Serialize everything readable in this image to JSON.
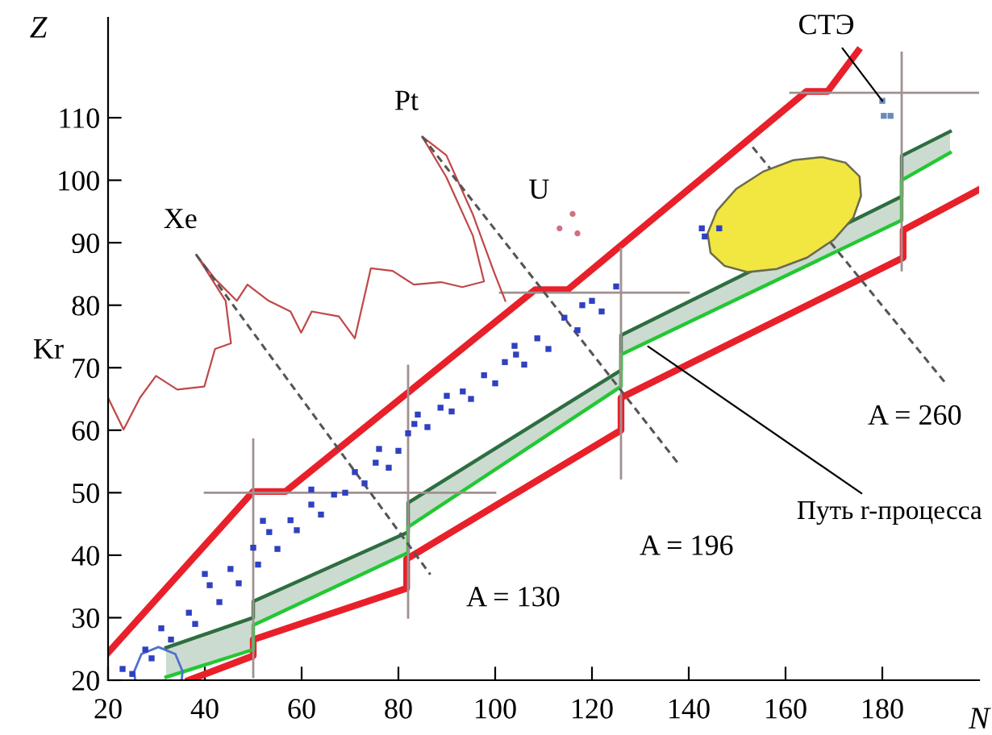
{
  "chart_data": {
    "type": "line",
    "xlabel": "N",
    "ylabel": "Z",
    "xlim": [
      20,
      200
    ],
    "ylim": [
      20,
      126
    ],
    "xticks": [
      20,
      40,
      60,
      80,
      100,
      120,
      140,
      160,
      180
    ],
    "yticks": [
      20,
      30,
      40,
      50,
      60,
      70,
      80,
      90,
      100,
      110
    ],
    "grid": false,
    "legend": false,
    "series": [
      {
        "color": "#e8202a",
        "x": [
          20,
          50,
          56.7,
          108.3,
          115,
          164.3,
          168.7,
          175
        ],
        "values": [
          24.4,
          50.2,
          50.2,
          82.5,
          82.5,
          114.2,
          114.2,
          120.7
        ]
      },
      {
        "color": "#e8202a",
        "x": [
          36.7,
          50,
          50,
          81.7,
          81.7,
          126,
          126,
          184.3,
          184.3,
          200
        ],
        "values": [
          20,
          23.9,
          26.5,
          34.7,
          39.4,
          60,
          65.2,
          87.6,
          92,
          98.5
        ]
      },
      {
        "type": "line",
        "color": "#2e6e40",
        "x": [
          32,
          50,
          50,
          82,
          82,
          126,
          126,
          184,
          184,
          194
        ],
        "values": [
          25.2,
          30,
          32.6,
          43.7,
          48.4,
          69.6,
          75.2,
          97.4,
          103.9,
          107.8
        ],
        "lower": [
          20.5,
          24.9,
          28.8,
          40.4,
          44.5,
          67,
          72.1,
          93.6,
          100,
          104.4
        ],
        "upper": [
          25.2,
          30,
          32.6,
          43.7,
          48.4,
          69.6,
          75.2,
          97.4,
          103.9,
          107.8
        ]
      },
      {
        "type": "line",
        "color": "#22c833",
        "x": [
          32,
          50,
          50,
          82,
          82,
          126,
          126,
          184,
          184,
          194
        ],
        "values": [
          20.5,
          24.9,
          28.8,
          40.4,
          44.5,
          67,
          72.1,
          93.6,
          100,
          104.4
        ]
      },
      {
        "type": "line",
        "color": "#a09090",
        "x": [
          40,
          100,
          null,
          50,
          50,
          null,
          82,
          82,
          null,
          101,
          140,
          null,
          126,
          126,
          null,
          161,
          200,
          null,
          184,
          184
        ],
        "values": [
          50,
          50,
          null,
          58.5,
          20.5,
          null,
          70.3,
          30,
          null,
          82,
          82,
          null,
          89,
          52.3,
          null,
          114,
          114,
          null,
          120.4,
          85.6
        ]
      },
      {
        "type": "line",
        "color": "#c04848",
        "x": [
          20,
          23.2,
          26.6,
          29.9,
          34.3,
          39.9,
          42.1,
          45.4,
          44.3,
          38.2,
          42.1,
          46.6,
          48.8,
          53.2,
          57.7,
          59.9,
          62.1,
          67.7,
          71,
          74.3,
          78.8,
          83.2,
          88.8,
          93.2,
          97.7,
          95.4,
          89.9,
          84.9,
          89.9,
          95.4,
          99.9,
          102.1
        ],
        "values": [
          65.2,
          60.1,
          65.2,
          68.7,
          66.5,
          67,
          73,
          73.9,
          80.7,
          88.1,
          84.2,
          80.7,
          83.3,
          80.7,
          79,
          75.6,
          79,
          78.2,
          74.7,
          85.9,
          85.5,
          83.3,
          83.7,
          82.9,
          83.8,
          91.1,
          100.5,
          107,
          104,
          94.5,
          85,
          80.7
        ]
      },
      {
        "type": "line",
        "color": "#555555",
        "line_style": "dashed",
        "x": [
          38.2,
          86.6
        ],
        "values": [
          88.1,
          36.9
        ]
      },
      {
        "type": "line",
        "color": "#555555",
        "line_style": "dashed",
        "x": [
          84.9,
          137.7
        ],
        "values": [
          107,
          54.8
        ]
      },
      {
        "type": "line",
        "color": "#555555",
        "line_style": "dashed",
        "x": [
          153.2,
          193.2
        ],
        "values": [
          105.3,
          67.4
        ]
      },
      {
        "type": "area",
        "color": "#f2e640",
        "x": [
          175.3,
          175.6,
          174.0,
          170,
          164.4,
          158.2,
          152.2,
          147.4,
          144.5,
          143.9,
          145.8,
          149.8,
          155.4,
          161.6,
          167.6,
          172.4
        ],
        "values": [
          100.6,
          97.5,
          94.0,
          90.5,
          87.6,
          85.8,
          85.3,
          86.3,
          88.4,
          91.5,
          95.1,
          98.6,
          101.4,
          103.2,
          103.7,
          102.8
        ]
      },
      {
        "type": "line",
        "color": "#5070d0",
        "x": [
          35.2,
          35.4,
          33.9,
          30.4,
          26.9,
          25.4,
          25.6
        ],
        "values": [
          20,
          21.4,
          24.2,
          25.3,
          24.2,
          21.4,
          20
        ]
      },
      {
        "type": "scatter",
        "color": "#3040c0",
        "marker": "square",
        "x": [
          23,
          27.7,
          31,
          36.7,
          41,
          45.3,
          50,
          53.3,
          57.7,
          62,
          66.7,
          71,
          75.3,
          80,
          83.3,
          88.7,
          93.3,
          97.7,
          102,
          104.3,
          108.7,
          114.3,
          120,
          125,
          25,
          29,
          33,
          38,
          43,
          47,
          51,
          55,
          59,
          64,
          69,
          73,
          78,
          82,
          86,
          91,
          95,
          100,
          106,
          111,
          117,
          122,
          40,
          52,
          62,
          76,
          84,
          90,
          104,
          118,
          142.7,
          143.3,
          146.3
        ],
        "values": [
          21.8,
          24.9,
          28.3,
          30.8,
          35.2,
          37.8,
          41.2,
          43.7,
          45.6,
          48.1,
          49.7,
          53.3,
          54.8,
          56.7,
          61,
          63.6,
          66.2,
          68.8,
          70.9,
          72.1,
          74.7,
          78,
          80.7,
          83,
          21,
          23.5,
          26.5,
          29,
          32.5,
          35.5,
          38.5,
          41,
          44,
          46.5,
          50,
          51.5,
          54,
          59.5,
          60.5,
          63,
          65,
          67.5,
          70.5,
          73,
          76,
          79,
          37,
          45.5,
          50.5,
          57,
          62.5,
          65.5,
          73.5,
          80,
          92.3,
          91,
          92.3
        ]
      },
      {
        "type": "scatter",
        "color": "#6a8ab8",
        "marker": "square",
        "x": [
          180,
          181.7,
          180.3
        ],
        "values": [
          112.7,
          110.3,
          110.3
        ]
      },
      {
        "type": "scatter",
        "color": "#d07080",
        "marker": "circle",
        "x": [
          113.3,
          116,
          117
        ],
        "values": [
          92.3,
          94.6,
          91.5
        ]
      }
    ],
    "annotations": [
      "Kr",
      {
        "text": "Xe",
        "x": 38.2,
        "y": 88.1
      },
      {
        "text": "Pt",
        "x": 84.9,
        "y": 107
      },
      {
        "text": "U",
        "x": 116,
        "y": 94.6
      },
      {
        "text": "СТЭ",
        "x": 180,
        "y": 112.7
      },
      {
        "text": "A = 130",
        "x": 86.6,
        "y": 36.9
      },
      {
        "text": "A = 196",
        "x": 137.7,
        "y": 54.8
      },
      {
        "text": "A = 260",
        "x": 193.2,
        "y": 67.4
      },
      {
        "text": "Путь r-процесса",
        "x": 131.6,
        "y": 73.4
      }
    ]
  }
}
